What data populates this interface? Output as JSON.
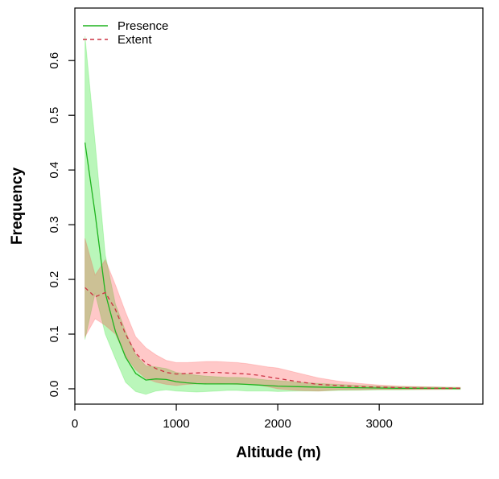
{
  "chart_data": {
    "type": "line",
    "title": "",
    "xlabel": "Altitude (m)",
    "ylabel": "Frequency",
    "grid": false,
    "legend_position": "top-left",
    "xlim": [
      0,
      4022
    ],
    "ylim": [
      -0.028,
      0.696
    ],
    "x_ticks": [
      0,
      1000,
      2000,
      3000
    ],
    "x_tick_labels": [
      "0",
      "1000",
      "2000",
      "3000"
    ],
    "y_ticks": [
      0.0,
      0.1,
      0.2,
      0.3,
      0.4,
      0.5,
      0.6
    ],
    "y_tick_labels": [
      "0.0",
      "0.1",
      "0.2",
      "0.3",
      "0.4",
      "0.5",
      "0.6"
    ],
    "x": [
      100,
      200,
      300,
      400,
      500,
      600,
      700,
      800,
      900,
      1000,
      1100,
      1200,
      1300,
      1400,
      1500,
      1600,
      1700,
      1800,
      1900,
      2000,
      2200,
      2400,
      2600,
      2800,
      3000,
      3200,
      3400,
      3600,
      3800
    ],
    "series": [
      {
        "name": "Presence",
        "color": "#1fb41f",
        "band_color": "#00dd00",
        "band_opacity": 0.27,
        "line_style": "solid",
        "values": [
          0.45,
          0.32,
          0.175,
          0.105,
          0.058,
          0.028,
          0.016,
          0.018,
          0.017,
          0.013,
          0.011,
          0.0095,
          0.009,
          0.009,
          0.009,
          0.009,
          0.008,
          0.007,
          0.006,
          0.005,
          0.004,
          0.003,
          0.0025,
          0.002,
          0.0015,
          0.001,
          0.001,
          0.0008,
          0.0005
        ],
        "band_upper": [
          0.645,
          0.45,
          0.245,
          0.155,
          0.105,
          0.062,
          0.042,
          0.04,
          0.037,
          0.03,
          0.027,
          0.025,
          0.023,
          0.022,
          0.021,
          0.021,
          0.02,
          0.018,
          0.016,
          0.015,
          0.012,
          0.01,
          0.008,
          0.0065,
          0.005,
          0.004,
          0.0035,
          0.003,
          0.0025
        ],
        "band_lower": [
          0.09,
          0.175,
          0.1,
          0.055,
          0.012,
          -0.005,
          -0.01,
          -0.004,
          -0.002,
          -0.004,
          -0.005,
          -0.006,
          -0.005,
          -0.004,
          -0.003,
          -0.003,
          -0.004,
          -0.004,
          -0.004,
          -0.005,
          -0.004,
          -0.004,
          -0.003,
          -0.0025,
          -0.002,
          -0.002,
          -0.0015,
          -0.001,
          -0.001
        ]
      },
      {
        "name": "Extent",
        "color": "#cc3344",
        "band_color": "#ff3333",
        "band_opacity": 0.27,
        "line_style": "dashed",
        "values": [
          0.185,
          0.168,
          0.176,
          0.145,
          0.1,
          0.065,
          0.047,
          0.037,
          0.03,
          0.027,
          0.028,
          0.029,
          0.03,
          0.03,
          0.029,
          0.028,
          0.027,
          0.025,
          0.022,
          0.019,
          0.013,
          0.008,
          0.006,
          0.004,
          0.003,
          0.002,
          0.0015,
          0.001,
          0.001
        ],
        "band_upper": [
          0.275,
          0.208,
          0.236,
          0.19,
          0.14,
          0.095,
          0.075,
          0.062,
          0.052,
          0.048,
          0.048,
          0.049,
          0.05,
          0.05,
          0.049,
          0.048,
          0.046,
          0.043,
          0.04,
          0.038,
          0.029,
          0.02,
          0.014,
          0.01,
          0.007,
          0.005,
          0.004,
          0.003,
          0.0025
        ],
        "band_lower": [
          0.095,
          0.128,
          0.116,
          0.1,
          0.06,
          0.035,
          0.019,
          0.012,
          0.008,
          0.006,
          0.008,
          0.009,
          0.01,
          0.01,
          0.009,
          0.008,
          0.008,
          0.007,
          0.004,
          0.0,
          -0.003,
          -0.004,
          -0.002,
          -0.002,
          -0.001,
          -0.001,
          -0.001,
          -0.001,
          -0.0005
        ]
      }
    ]
  }
}
